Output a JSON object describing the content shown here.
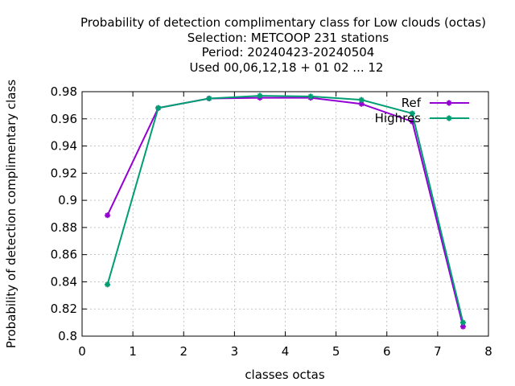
{
  "chart_data": {
    "type": "line",
    "title_lines": [
      "Probability of detection complimentary class  for Low clouds (octas)",
      "Selection: METCOOP    231 stations",
      "Period: 20240423-20240504",
      "Used  00,06,12,18 + 01 02 ... 12"
    ],
    "xlabel": "classes octas",
    "ylabel": "Probability of detection complimentary class",
    "xlim": [
      0,
      8
    ],
    "ylim": [
      0.8,
      0.98
    ],
    "xticks": [
      0,
      1,
      2,
      3,
      4,
      5,
      6,
      7,
      8
    ],
    "yticks": [
      0.8,
      0.82,
      0.84,
      0.86,
      0.88,
      0.9,
      0.92,
      0.94,
      0.96,
      0.98
    ],
    "ytick_labels": [
      "0.8",
      "0.82",
      "0.84",
      "0.86",
      "0.88",
      "0.9",
      "0.92",
      "0.94",
      "0.96",
      "0.98"
    ],
    "grid": true,
    "legend_position": "top-right",
    "x": [
      0.5,
      1.5,
      2.5,
      3.5,
      4.5,
      5.5,
      6.5,
      7.5
    ],
    "series": [
      {
        "name": "Ref",
        "color": "#9400d3",
        "values": [
          0.889,
          0.968,
          0.975,
          0.9755,
          0.9755,
          0.971,
          0.958,
          0.807
        ]
      },
      {
        "name": "Highres",
        "color": "#009e73",
        "values": [
          0.838,
          0.968,
          0.975,
          0.977,
          0.9765,
          0.974,
          0.964,
          0.81
        ]
      }
    ]
  }
}
